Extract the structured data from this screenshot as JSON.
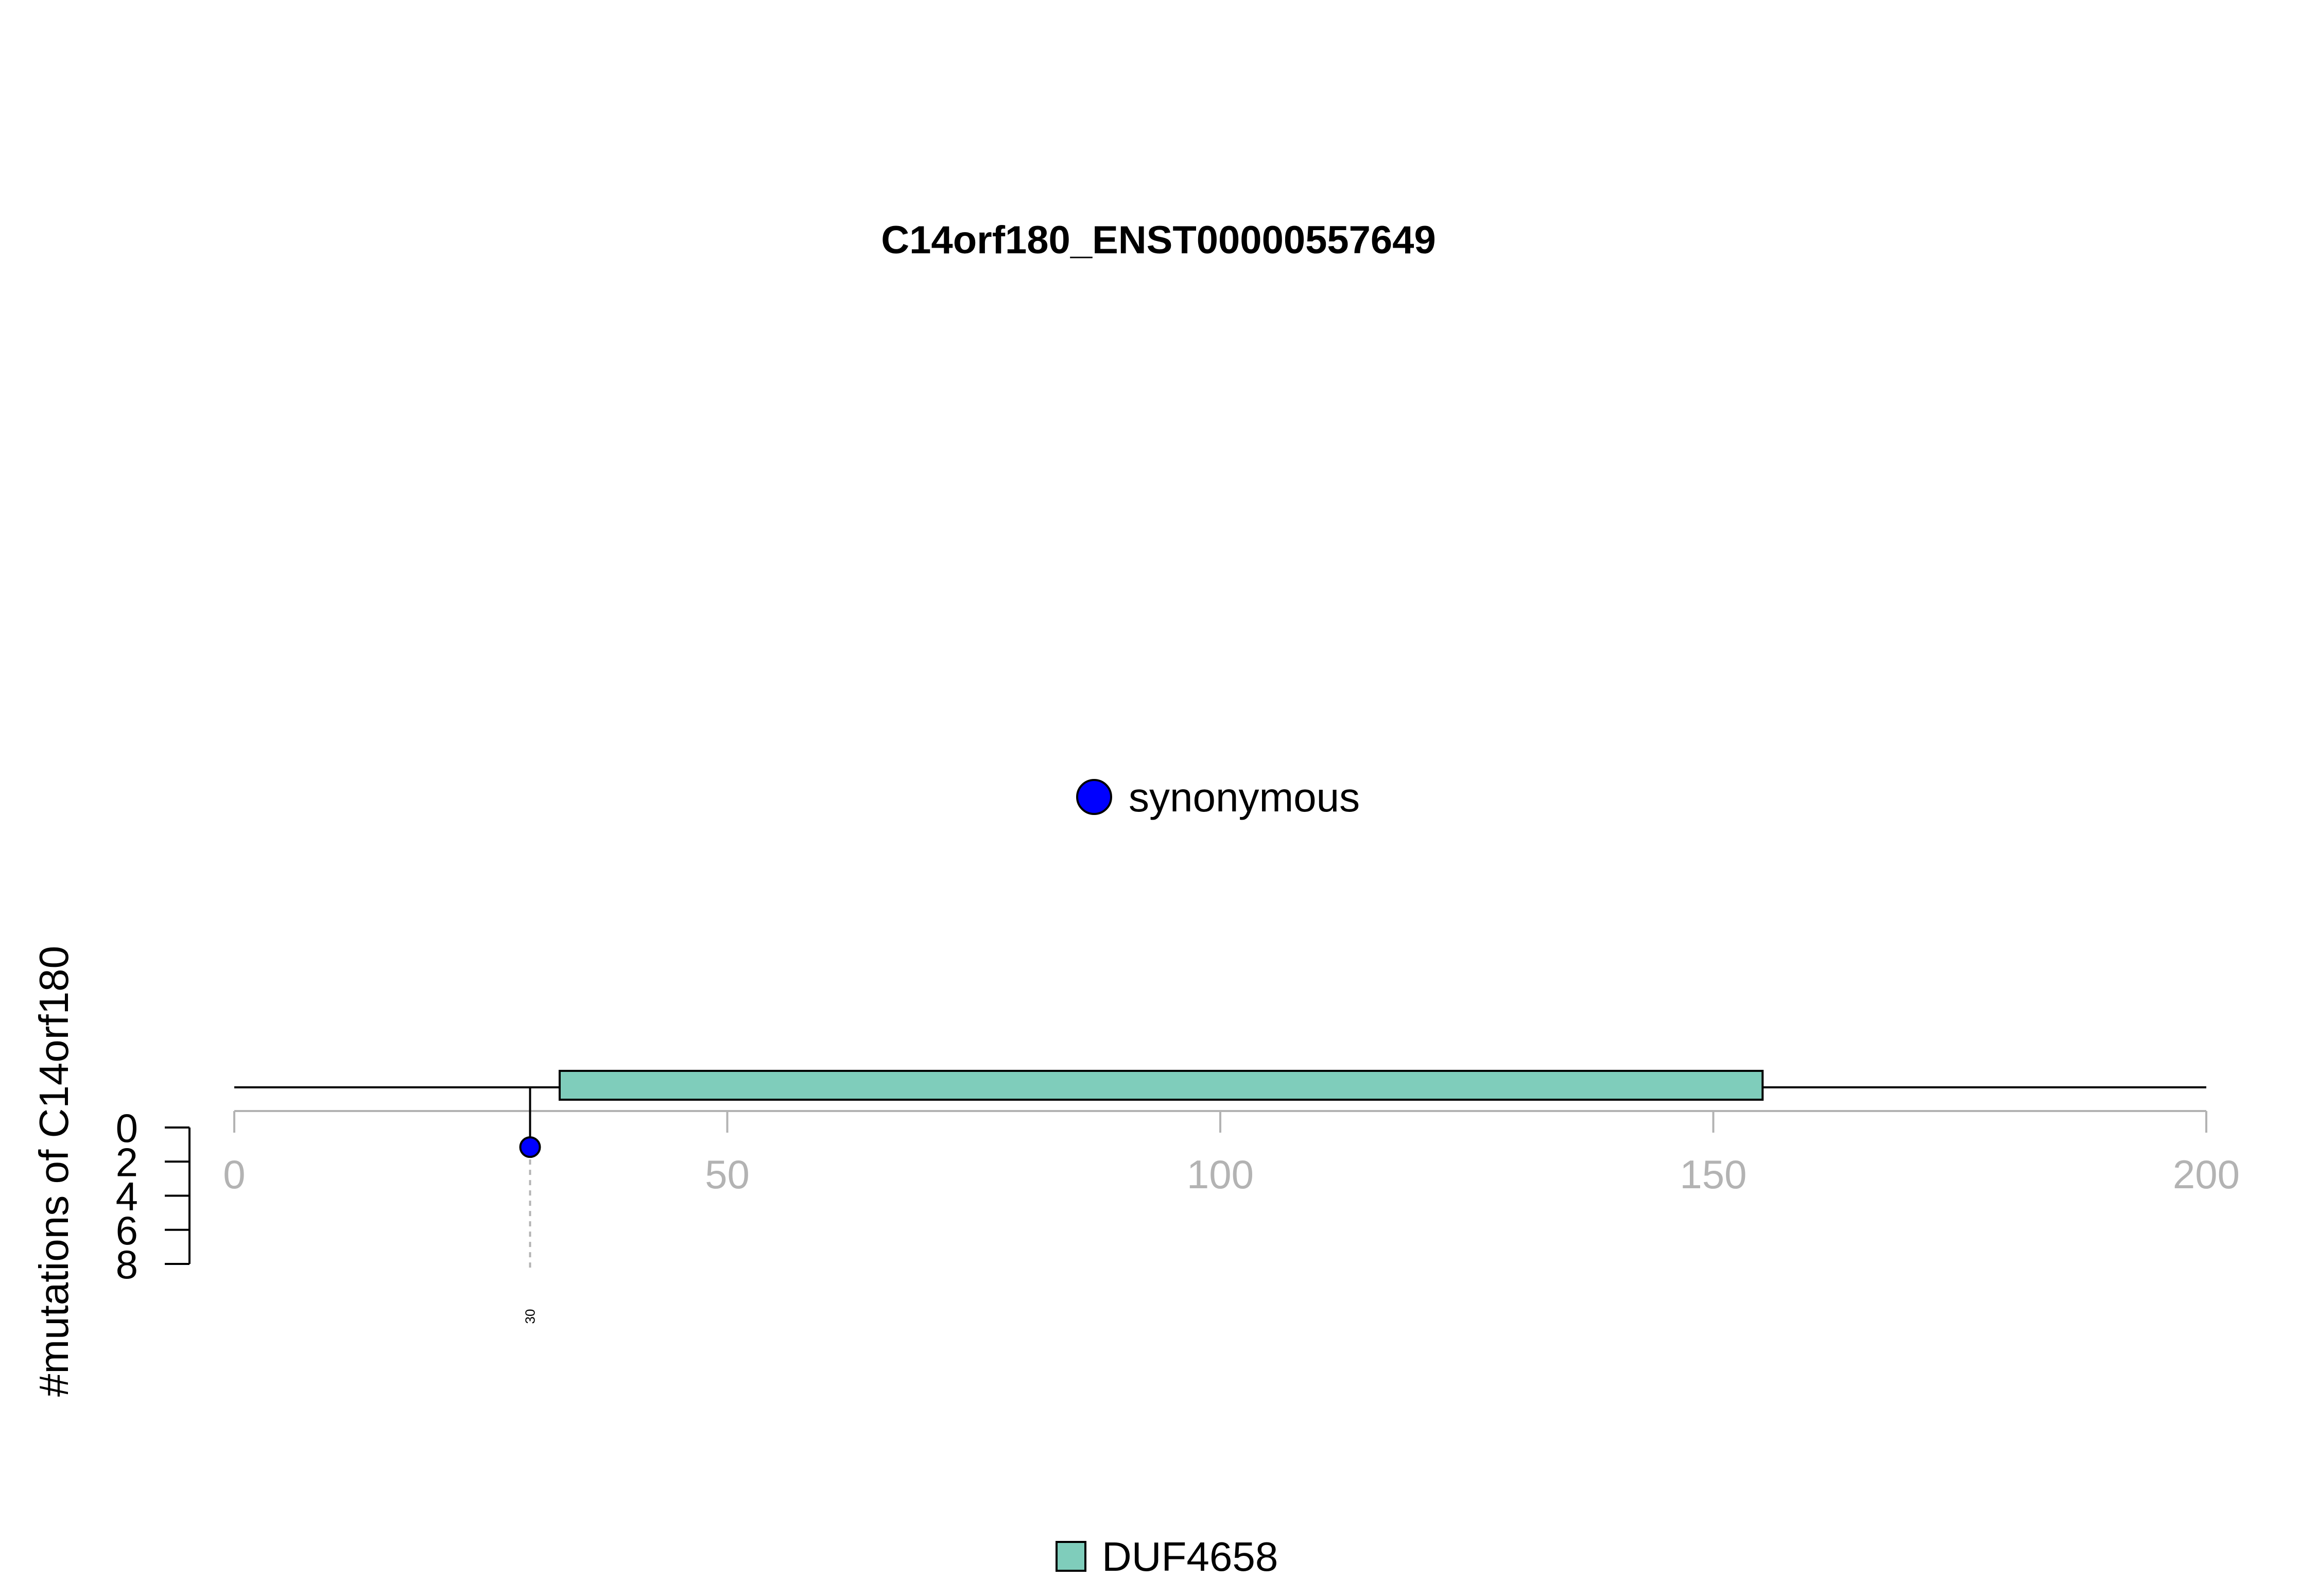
{
  "chart_data": {
    "type": "lollipop",
    "title": "C14orf180_ENST00000557649",
    "ylabel": "#mutations of C14orf180",
    "xlim": [
      0,
      200
    ],
    "x_ticks": [
      0,
      50,
      100,
      150,
      200
    ],
    "ylim": [
      0,
      8
    ],
    "y_ticks": [
      0,
      2,
      4,
      6,
      8
    ],
    "protein_length": 200,
    "mutation_legend": [
      {
        "name": "synonymous",
        "color": "#0000ff"
      }
    ],
    "mutations": [
      {
        "position": 30,
        "count": 1,
        "type": "synonymous",
        "label": "30"
      }
    ],
    "domains": [
      {
        "name": "DUF4658",
        "start": 33,
        "end": 155,
        "color": "#7fcdbb"
      }
    ]
  }
}
